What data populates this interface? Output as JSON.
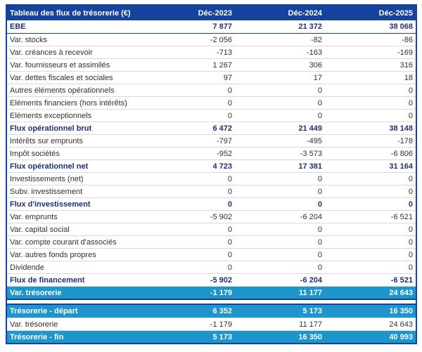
{
  "table": {
    "title": "Tableau des flux de trésorerie (€)",
    "columns": [
      "Déc-2023",
      "Déc-2024",
      "Déc-2025"
    ],
    "colors": {
      "header_bg": "#16449C",
      "border": "#16449C",
      "section_text": "#1F2E7D",
      "highlight_bg": "#1E96CC",
      "row_line": "#D9D9D9",
      "body_text": "#303030"
    },
    "rows": [
      {
        "label": "EBE",
        "values": [
          "7 877",
          "21 372",
          "38 068"
        ],
        "style": "section"
      },
      {
        "label": "Var. stocks",
        "values": [
          "-2 056",
          "-82",
          "-86"
        ],
        "style": "normal"
      },
      {
        "label": "Var. créances à recevoir",
        "values": [
          "-713",
          "-163",
          "-169"
        ],
        "style": "normal"
      },
      {
        "label": "Var. fournisseurs et assimilés",
        "values": [
          "1 267",
          "306",
          "316"
        ],
        "style": "normal"
      },
      {
        "label": "Var. dettes fiscales et sociales",
        "values": [
          "97",
          "17",
          "18"
        ],
        "style": "normal"
      },
      {
        "label": "Autres éléments opérationnels",
        "values": [
          "0",
          "0",
          "0"
        ],
        "style": "normal"
      },
      {
        "label": "Eléments financiers (hors intérêts)",
        "values": [
          "0",
          "0",
          "0"
        ],
        "style": "normal"
      },
      {
        "label": "Eléments exceptionnels",
        "values": [
          "0",
          "0",
          "0"
        ],
        "style": "normal"
      },
      {
        "label": "Flux opérationnel brut",
        "values": [
          "6 472",
          "21 449",
          "38 148"
        ],
        "style": "section"
      },
      {
        "label": "Intérêts sur emprunts",
        "values": [
          "-797",
          "-495",
          "-178"
        ],
        "style": "normal"
      },
      {
        "label": "Impôt sociétés",
        "values": [
          "-952",
          "-3 573",
          "-6 806"
        ],
        "style": "normal"
      },
      {
        "label": "Flux opérationnel net",
        "values": [
          "4 723",
          "17 381",
          "31 164"
        ],
        "style": "section"
      },
      {
        "label": "Investissements (net)",
        "values": [
          "0",
          "0",
          "0"
        ],
        "style": "normal"
      },
      {
        "label": "Subv. investissement",
        "values": [
          "0",
          "0",
          "0"
        ],
        "style": "normal"
      },
      {
        "label": "Flux d'investissement",
        "values": [
          "0",
          "0",
          "0"
        ],
        "style": "section"
      },
      {
        "label": "Var. emprunts",
        "values": [
          "-5 902",
          "-6 204",
          "-6 521"
        ],
        "style": "normal"
      },
      {
        "label": "Var. capital social",
        "values": [
          "0",
          "0",
          "0"
        ],
        "style": "normal"
      },
      {
        "label": "Var. compte courant d'associés",
        "values": [
          "0",
          "0",
          "0"
        ],
        "style": "normal"
      },
      {
        "label": "Var. autres fonds propres",
        "values": [
          "0",
          "0",
          "0"
        ],
        "style": "normal"
      },
      {
        "label": "Dividende",
        "values": [
          "0",
          "0",
          "0"
        ],
        "style": "normal"
      },
      {
        "label": "Flux de financement",
        "values": [
          "-5 902",
          "-6 204",
          "-6 521"
        ],
        "style": "section"
      },
      {
        "label": "Var. trésorerie",
        "values": [
          "-1 179",
          "11 177",
          "24 643"
        ],
        "style": "highlight"
      }
    ],
    "bottom_rows": [
      {
        "label": "Trésorerie - départ",
        "values": [
          "6 352",
          "5 173",
          "16 350"
        ],
        "style": "highlight"
      },
      {
        "label": "Var. trésorerie",
        "values": [
          "-1 179",
          "11 177",
          "24 643"
        ],
        "style": "normal"
      },
      {
        "label": "Trésorerie - fin",
        "values": [
          "5 173",
          "16 350",
          "40 993"
        ],
        "style": "highlight"
      }
    ]
  }
}
